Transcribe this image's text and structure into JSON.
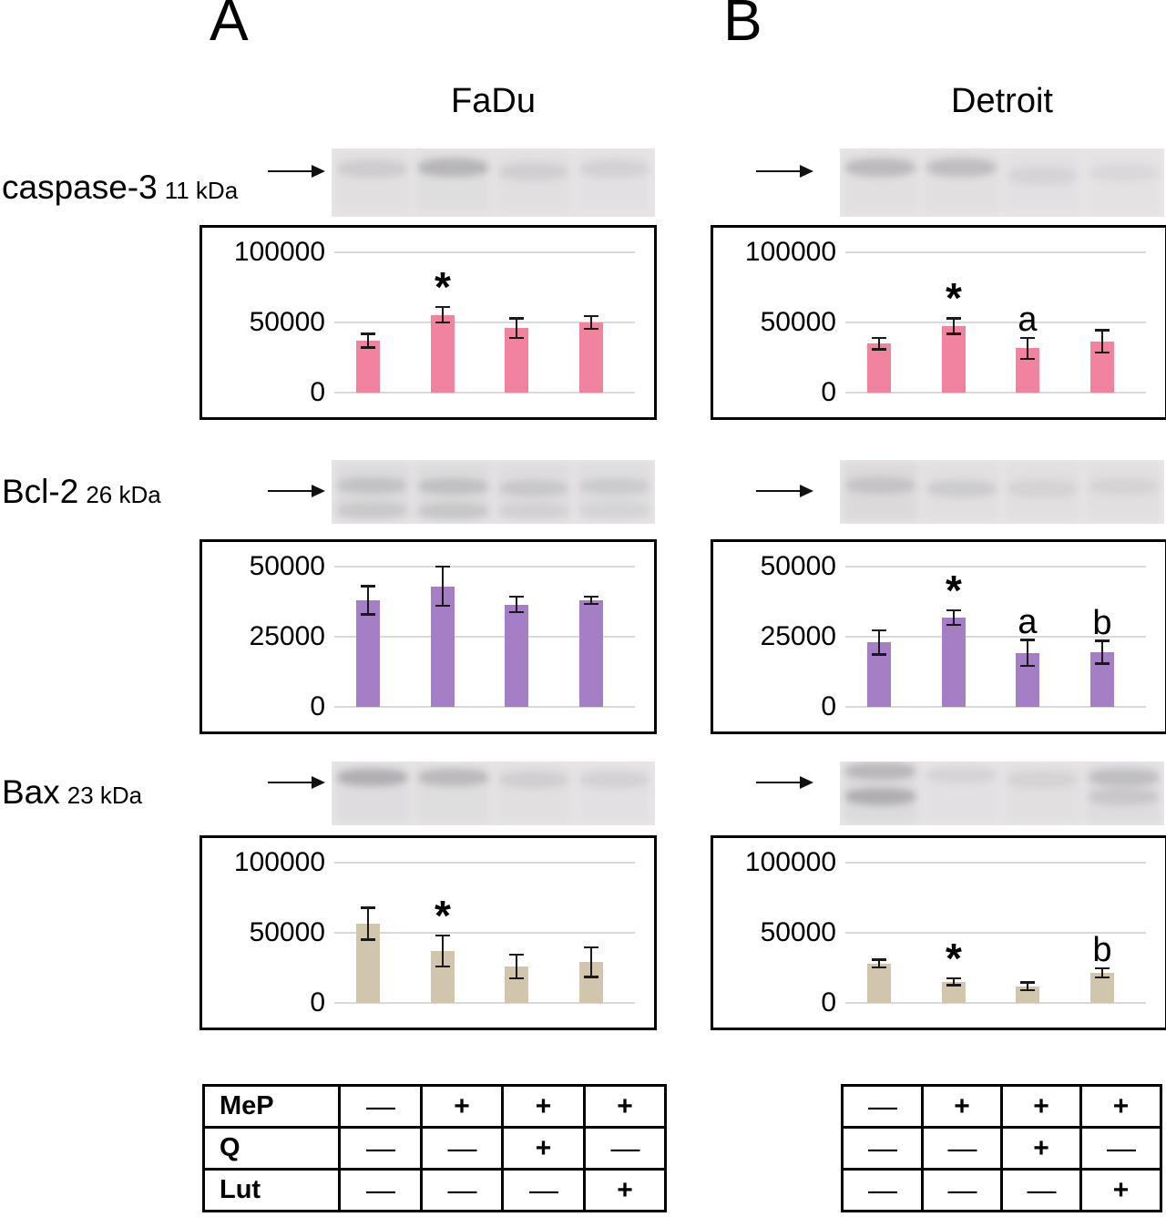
{
  "figure": {
    "panels": [
      {
        "letter": "A",
        "cell_line": "FaDu"
      },
      {
        "letter": "B",
        "cell_line": "Detroit"
      }
    ],
    "proteins": [
      {
        "name": "caspase-3",
        "mass": "11 kDa"
      },
      {
        "name": "Bcl-2",
        "mass": "26 kDa"
      },
      {
        "name": "Bax",
        "mass": "23 kDa"
      }
    ]
  },
  "chart_data": [
    {
      "id": "fadu-caspase-3",
      "type": "bar",
      "panel": "A",
      "cell_line": "FaDu",
      "protein": "caspase-3",
      "title": "",
      "xlabel": "",
      "ylabel": "",
      "categories": [
        "MeP− Q− Lut−",
        "MeP+ Q− Lut−",
        "MeP+ Q+ Lut−",
        "MeP+ Q− Lut+"
      ],
      "values": [
        37000,
        55500,
        46000,
        50000
      ],
      "errors": [
        5000,
        5500,
        7000,
        4500
      ],
      "annotations": [
        "",
        "*",
        "",
        ""
      ],
      "ylim": [
        0,
        100000
      ],
      "yticks": [
        0,
        50000,
        100000
      ],
      "bar_color": "#f2839f",
      "grid": true,
      "legend": false
    },
    {
      "id": "detroit-caspase-3",
      "type": "bar",
      "panel": "B",
      "cell_line": "Detroit",
      "protein": "caspase-3",
      "title": "",
      "xlabel": "",
      "ylabel": "",
      "categories": [
        "MeP− Q− Lut−",
        "MeP+ Q− Lut−",
        "MeP+ Q+ Lut−",
        "MeP+ Q− Lut+"
      ],
      "values": [
        35000,
        47500,
        31500,
        36500
      ],
      "errors": [
        4000,
        5500,
        7500,
        8000
      ],
      "annotations": [
        "",
        "*",
        "a",
        ""
      ],
      "ylim": [
        0,
        100000
      ],
      "yticks": [
        0,
        50000,
        100000
      ],
      "bar_color": "#f2839f",
      "grid": true,
      "legend": false
    },
    {
      "id": "fadu-bcl-2",
      "type": "bar",
      "panel": "A",
      "cell_line": "FaDu",
      "protein": "Bcl-2",
      "title": "",
      "xlabel": "",
      "ylabel": "",
      "categories": [
        "MeP− Q− Lut−",
        "MeP+ Q− Lut−",
        "MeP+ Q+ Lut−",
        "MeP+ Q− Lut+"
      ],
      "values": [
        38000,
        43000,
        36500,
        38000
      ],
      "errors": [
        5000,
        7000,
        2800,
        1300
      ],
      "annotations": [
        "",
        "",
        "",
        ""
      ],
      "ylim": [
        0,
        50000
      ],
      "yticks": [
        0,
        25000,
        50000
      ],
      "bar_color": "#a57fc5",
      "grid": true,
      "legend": false
    },
    {
      "id": "detroit-bcl-2",
      "type": "bar",
      "panel": "B",
      "cell_line": "Detroit",
      "protein": "Bcl-2",
      "title": "",
      "xlabel": "",
      "ylabel": "",
      "categories": [
        "MeP− Q− Lut−",
        "MeP+ Q− Lut−",
        "MeP+ Q+ Lut−",
        "MeP+ Q− Lut+"
      ],
      "values": [
        23000,
        31800,
        19200,
        19500
      ],
      "errors": [
        4300,
        2600,
        4600,
        4000
      ],
      "annotations": [
        "",
        "*",
        "a",
        "b"
      ],
      "ylim": [
        0,
        50000
      ],
      "yticks": [
        0,
        25000,
        50000
      ],
      "bar_color": "#a57fc5",
      "grid": true,
      "legend": false
    },
    {
      "id": "fadu-bax",
      "type": "bar",
      "panel": "A",
      "cell_line": "FaDu",
      "protein": "Bax",
      "title": "",
      "xlabel": "",
      "ylabel": "",
      "categories": [
        "MeP− Q− Lut−",
        "MeP+ Q− Lut−",
        "MeP+ Q+ Lut−",
        "MeP+ Q− Lut+"
      ],
      "values": [
        56500,
        37000,
        26000,
        29000
      ],
      "errors": [
        11500,
        11000,
        8500,
        10500
      ],
      "annotations": [
        "",
        "*",
        "",
        ""
      ],
      "ylim": [
        0,
        100000
      ],
      "yticks": [
        0,
        50000,
        100000
      ],
      "bar_color": "#d1c5ae",
      "grid": true,
      "legend": false
    },
    {
      "id": "detroit-bax",
      "type": "bar",
      "panel": "B",
      "cell_line": "Detroit",
      "protein": "Bax",
      "title": "",
      "xlabel": "",
      "ylabel": "",
      "categories": [
        "MeP− Q− Lut−",
        "MeP+ Q− Lut−",
        "MeP+ Q+ Lut−",
        "MeP+ Q− Lut+"
      ],
      "values": [
        28000,
        15000,
        12000,
        21500
      ],
      "errors": [
        2800,
        2500,
        2800,
        3300
      ],
      "annotations": [
        "",
        "*",
        "",
        "b"
      ],
      "ylim": [
        0,
        100000
      ],
      "yticks": [
        0,
        50000,
        100000
      ],
      "bar_color": "#d1c5ae",
      "grid": true,
      "legend": false
    }
  ],
  "blots": [
    {
      "panel": "A",
      "protein": "caspase-3",
      "lanes": [
        {
          "smudge": 0.1,
          "bands": [
            [
              0.3,
              0.16
            ]
          ]
        },
        {
          "smudge": 0.12,
          "bands": [
            [
              0.28,
              0.34
            ]
          ]
        },
        {
          "smudge": 0.1,
          "bands": [
            [
              0.34,
              0.14
            ]
          ]
        },
        {
          "smudge": 0.08,
          "bands": [
            [
              0.3,
              0.12
            ]
          ]
        }
      ]
    },
    {
      "panel": "B",
      "protein": "caspase-3",
      "lanes": [
        {
          "smudge": 0.1,
          "bands": [
            [
              0.28,
              0.3
            ]
          ]
        },
        {
          "smudge": 0.1,
          "bands": [
            [
              0.28,
              0.28
            ]
          ]
        },
        {
          "smudge": 0.08,
          "bands": [
            [
              0.4,
              0.1
            ]
          ]
        },
        {
          "smudge": 0.06,
          "bands": [
            [
              0.35,
              0.08
            ]
          ]
        }
      ]
    },
    {
      "panel": "A",
      "protein": "Bcl-2",
      "lanes": [
        {
          "smudge": 0.16,
          "bands": [
            [
              0.4,
              0.22
            ],
            [
              0.78,
              0.16
            ]
          ]
        },
        {
          "smudge": 0.16,
          "bands": [
            [
              0.42,
              0.24
            ],
            [
              0.8,
              0.18
            ]
          ]
        },
        {
          "smudge": 0.14,
          "bands": [
            [
              0.44,
              0.18
            ],
            [
              0.8,
              0.1
            ]
          ]
        },
        {
          "smudge": 0.13,
          "bands": [
            [
              0.42,
              0.16
            ],
            [
              0.78,
              0.08
            ]
          ]
        }
      ]
    },
    {
      "panel": "B",
      "protein": "Bcl-2",
      "lanes": [
        {
          "smudge": 0.18,
          "bands": [
            [
              0.4,
              0.2
            ]
          ]
        },
        {
          "smudge": 0.1,
          "bands": [
            [
              0.45,
              0.16
            ]
          ]
        },
        {
          "smudge": 0.1,
          "bands": [
            [
              0.45,
              0.1
            ]
          ]
        },
        {
          "smudge": 0.1,
          "bands": [
            [
              0.42,
              0.1
            ]
          ]
        }
      ]
    },
    {
      "panel": "A",
      "protein": "Bax",
      "lanes": [
        {
          "smudge": 0.14,
          "bands": [
            [
              0.25,
              0.38
            ]
          ]
        },
        {
          "smudge": 0.12,
          "bands": [
            [
              0.25,
              0.3
            ]
          ]
        },
        {
          "smudge": 0.1,
          "bands": [
            [
              0.28,
              0.14
            ]
          ]
        },
        {
          "smudge": 0.08,
          "bands": [
            [
              0.28,
              0.12
            ]
          ]
        }
      ]
    },
    {
      "panel": "B",
      "protein": "Bax",
      "lanes": [
        {
          "smudge": 0.16,
          "bands": [
            [
              0.15,
              0.3
            ],
            [
              0.55,
              0.38
            ]
          ]
        },
        {
          "smudge": 0.08,
          "bands": [
            [
              0.22,
              0.1
            ]
          ]
        },
        {
          "smudge": 0.1,
          "bands": [
            [
              0.28,
              0.1
            ]
          ]
        },
        {
          "smudge": 0.14,
          "bands": [
            [
              0.25,
              0.26
            ],
            [
              0.55,
              0.18
            ]
          ]
        }
      ]
    }
  ],
  "treatments": {
    "row_labels": [
      "MeP",
      "Q",
      "Lut"
    ],
    "matrix": [
      [
        "—",
        "+",
        "+",
        "+"
      ],
      [
        "—",
        "—",
        "+",
        "—"
      ],
      [
        "—",
        "—",
        "—",
        "+"
      ]
    ]
  },
  "style": {
    "gridline_color": "#d9d9d9",
    "error_bar_color": "#1a1a1a",
    "blot_background": "#e9e7e8"
  }
}
